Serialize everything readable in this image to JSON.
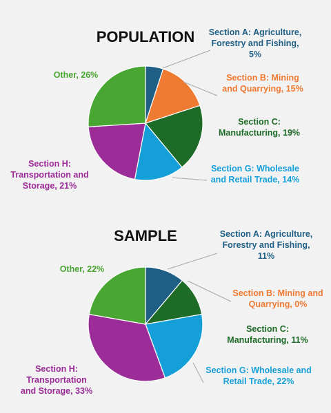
{
  "chart_data": [
    {
      "type": "pie",
      "title": "POPULATION",
      "slices": [
        {
          "label_lines": [
            "Section A: Agriculture,",
            "Forestry and Fishing,",
            "5%"
          ],
          "value": 5,
          "color": "#1f5f86"
        },
        {
          "label_lines": [
            "Section B: Mining",
            "and Quarrying, 15%"
          ],
          "value": 15,
          "color": "#ef7a32"
        },
        {
          "label_lines": [
            "Section C:",
            "Manufacturing, 19%"
          ],
          "value": 19,
          "color": "#1d6b27"
        },
        {
          "label_lines": [
            "Section G: Wholesale",
            "and Retail Trade, 14%"
          ],
          "value": 14,
          "color": "#159fd8"
        },
        {
          "label_lines": [
            "Section H:",
            "Transportation and",
            "Storage, 21%"
          ],
          "value": 21,
          "color": "#9b2c98"
        },
        {
          "label_lines": [
            "Other, 26%"
          ],
          "value": 26,
          "color": "#4aa632"
        }
      ]
    },
    {
      "type": "pie",
      "title": "SAMPLE",
      "slices": [
        {
          "label_lines": [
            "Section A: Agriculture,",
            "Forestry and Fishing,",
            "11%"
          ],
          "value": 11,
          "color": "#1f5f86"
        },
        {
          "label_lines": [
            "Section B: Mining and",
            "Quarrying, 0%"
          ],
          "value": 0,
          "color": "#ef7a32"
        },
        {
          "label_lines": [
            "Section C:",
            "Manufacturing, 11%"
          ],
          "value": 11,
          "color": "#1d6b27"
        },
        {
          "label_lines": [
            "Section G: Wholesale and",
            "Retail Trade, 22%"
          ],
          "value": 22,
          "color": "#159fd8"
        },
        {
          "label_lines": [
            "Section H:",
            "Transportation",
            "and Storage, 33%"
          ],
          "value": 33,
          "color": "#9b2c98"
        },
        {
          "label_lines": [
            "Other, 22%"
          ],
          "value": 22,
          "color": "#4aa632"
        }
      ]
    }
  ]
}
